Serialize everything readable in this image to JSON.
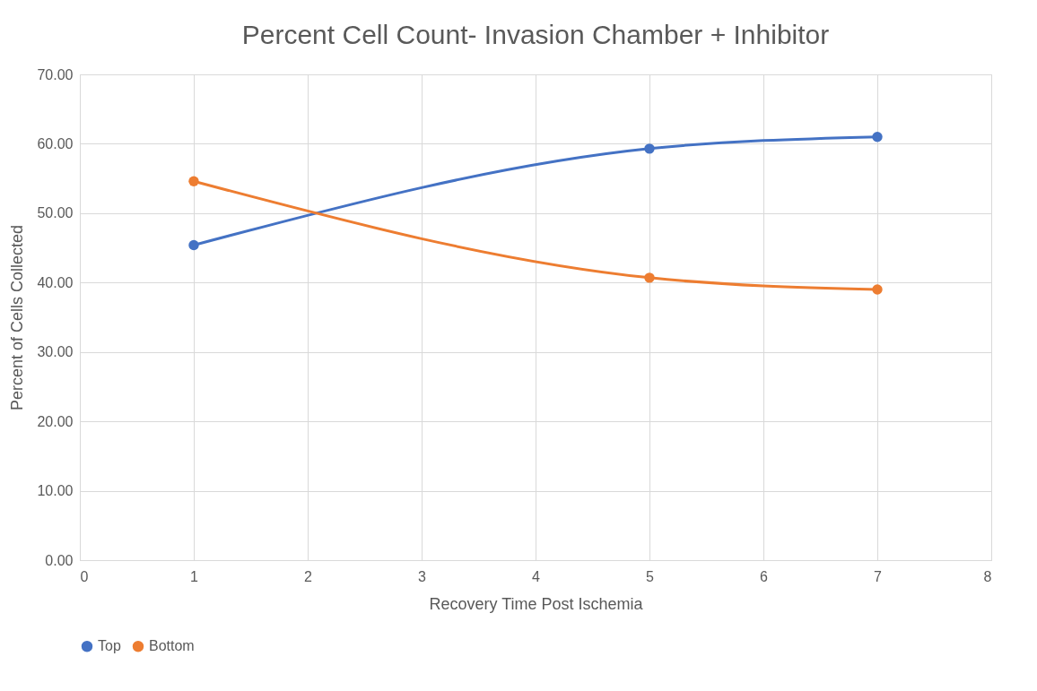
{
  "chart_data": {
    "type": "line",
    "title": "Percent Cell Count- Invasion Chamber + Inhibitor",
    "xlabel": "Recovery Time Post Ischemia",
    "ylabel": "Percent of Cells Collected",
    "x": [
      1,
      5,
      7
    ],
    "series": [
      {
        "name": "Top",
        "color": "#4472c4",
        "values": [
          45.4,
          59.3,
          61.0
        ]
      },
      {
        "name": "Bottom",
        "color": "#ed7d31",
        "values": [
          54.6,
          40.7,
          39.0
        ]
      }
    ],
    "xlim": [
      0,
      8
    ],
    "xticks": [
      0,
      1,
      2,
      3,
      4,
      5,
      6,
      7,
      8
    ],
    "ylim": [
      0,
      70
    ],
    "yticks": [
      {
        "value": 0,
        "label": "0.00"
      },
      {
        "value": 10,
        "label": "10.00"
      },
      {
        "value": 20,
        "label": "20.00"
      },
      {
        "value": 30,
        "label": "30.00"
      },
      {
        "value": 40,
        "label": "40.00"
      },
      {
        "value": 50,
        "label": "50.00"
      },
      {
        "value": 60,
        "label": "60.00"
      },
      {
        "value": 70,
        "label": "70.00"
      }
    ],
    "grid": true,
    "legend": "bottom",
    "marker": "circle",
    "line_style": "solid"
  }
}
